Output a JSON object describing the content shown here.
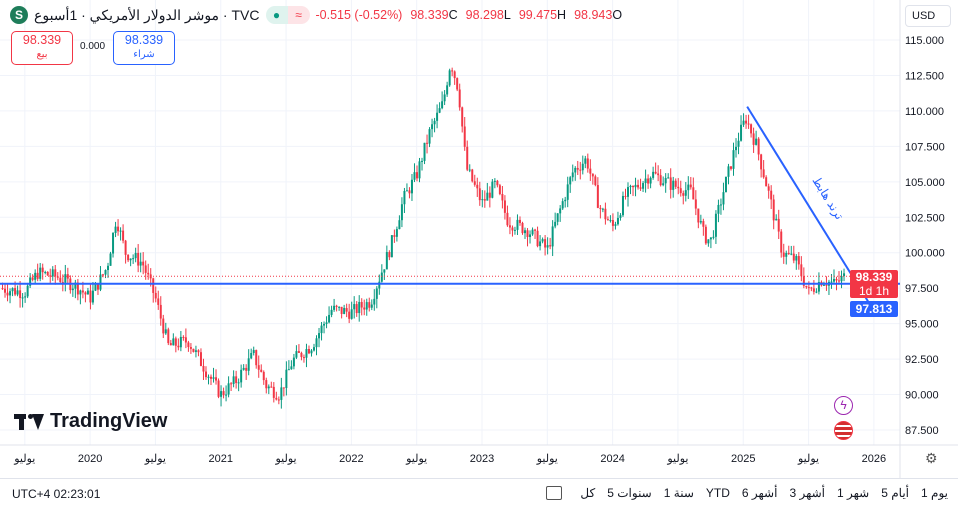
{
  "header": {
    "symbol_title": "موشر الدولار الأمريكي · 1أسبوع · TVC",
    "open": "98.943",
    "open_label": "O",
    "high": "99.475",
    "high_label": "H",
    "low": "98.298",
    "low_label": "L",
    "close": "98.339",
    "close_label": "C",
    "change": "-0.515 (-0.52%)",
    "logo_letter": "S"
  },
  "trade": {
    "sell_price": "98.339",
    "sell_label": "بيع",
    "spread": "0.000",
    "buy_price": "98.339",
    "buy_label": "شراء"
  },
  "currency": "USD",
  "price_tags": {
    "last": "98.339",
    "countdown": "1d 1h",
    "line": "97.813"
  },
  "annotation": "ترند هابط",
  "watermark": "TradingView",
  "bottom": {
    "timezone": "UTC+4 02:23:01",
    "ranges": [
      "كل",
      "5 سنوات",
      "1 سنة",
      "YTD",
      "6 أشهر",
      "3 أشهر",
      "1 شهر",
      "5 أيام",
      "1 يوم"
    ]
  },
  "colors": {
    "up": "#089981",
    "down": "#f23645",
    "line": "#2962ff"
  },
  "chart_data": {
    "type": "candlestick",
    "title": "موشر الدولار الأمريكي",
    "interval": "1W",
    "y_ticks": [
      "115.000",
      "112.500",
      "110.000",
      "107.500",
      "105.000",
      "102.500",
      "100.000",
      "97.500",
      "95.000",
      "92.500",
      "90.000",
      "87.500"
    ],
    "ylim": [
      86.5,
      116.5
    ],
    "x_ticks": [
      {
        "t": 2019.5,
        "label": "يوليو"
      },
      {
        "t": 2020,
        "label": "2020"
      },
      {
        "t": 2020.5,
        "label": "يوليو"
      },
      {
        "t": 2021,
        "label": "2021"
      },
      {
        "t": 2021.5,
        "label": "يوليو"
      },
      {
        "t": 2022,
        "label": "2022"
      },
      {
        "t": 2022.5,
        "label": "يوليو"
      },
      {
        "t": 2023,
        "label": "2023"
      },
      {
        "t": 2023.5,
        "label": "يوليو"
      },
      {
        "t": 2024,
        "label": "2024"
      },
      {
        "t": 2024.5,
        "label": "يوليو"
      },
      {
        "t": 2025,
        "label": "2025"
      },
      {
        "t": 2025.5,
        "label": "يوليو"
      },
      {
        "t": 2026,
        "label": "2026"
      }
    ],
    "xlim": [
      2019.31,
      2026.2
    ],
    "approx_close_path": [
      [
        2019.31,
        97.5
      ],
      [
        2019.5,
        97.2
      ],
      [
        2019.6,
        98.6
      ],
      [
        2019.75,
        98.3
      ],
      [
        2019.9,
        97.6
      ],
      [
        2020.0,
        96.8
      ],
      [
        2020.13,
        99
      ],
      [
        2020.2,
        102.5
      ],
      [
        2020.27,
        100
      ],
      [
        2020.4,
        99.3
      ],
      [
        2020.5,
        96.8
      ],
      [
        2020.6,
        93.4
      ],
      [
        2020.75,
        93.8
      ],
      [
        2020.9,
        91.5
      ],
      [
        2021.0,
        90
      ],
      [
        2021.12,
        91
      ],
      [
        2021.25,
        92.8
      ],
      [
        2021.35,
        90.6
      ],
      [
        2021.45,
        90
      ],
      [
        2021.55,
        92.4
      ],
      [
        2021.7,
        93.5
      ],
      [
        2021.85,
        96
      ],
      [
        2022.0,
        95.8
      ],
      [
        2022.15,
        96.6
      ],
      [
        2022.3,
        100.4
      ],
      [
        2022.4,
        103.8
      ],
      [
        2022.5,
        105.5
      ],
      [
        2022.6,
        108.5
      ],
      [
        2022.7,
        110.5
      ],
      [
        2022.76,
        113.5
      ],
      [
        2022.82,
        111.5
      ],
      [
        2022.88,
        106
      ],
      [
        2023.0,
        103.5
      ],
      [
        2023.1,
        104.8
      ],
      [
        2023.2,
        102.2
      ],
      [
        2023.35,
        101.6
      ],
      [
        2023.5,
        100.2
      ],
      [
        2023.56,
        102
      ],
      [
        2023.7,
        105.8
      ],
      [
        2023.8,
        106.6
      ],
      [
        2023.9,
        103.2
      ],
      [
        2024.0,
        101.8
      ],
      [
        2024.1,
        104
      ],
      [
        2024.3,
        105.6
      ],
      [
        2024.45,
        104.8
      ],
      [
        2024.6,
        104.3
      ],
      [
        2024.7,
        101.2
      ],
      [
        2024.75,
        100.8
      ],
      [
        2024.85,
        104.4
      ],
      [
        2024.95,
        107.8
      ],
      [
        2025.02,
        109.5
      ],
      [
        2025.1,
        107.6
      ],
      [
        2025.2,
        104
      ],
      [
        2025.3,
        100
      ],
      [
        2025.4,
        99.5
      ],
      [
        2025.5,
        97.2
      ],
      [
        2025.6,
        98.1
      ],
      [
        2025.7,
        97.8
      ],
      [
        2025.78,
        98.339
      ]
    ],
    "horizontal_line": 97.813,
    "trend_line": [
      [
        2025.03,
        110.3
      ],
      [
        2025.96,
        96.5
      ]
    ]
  }
}
